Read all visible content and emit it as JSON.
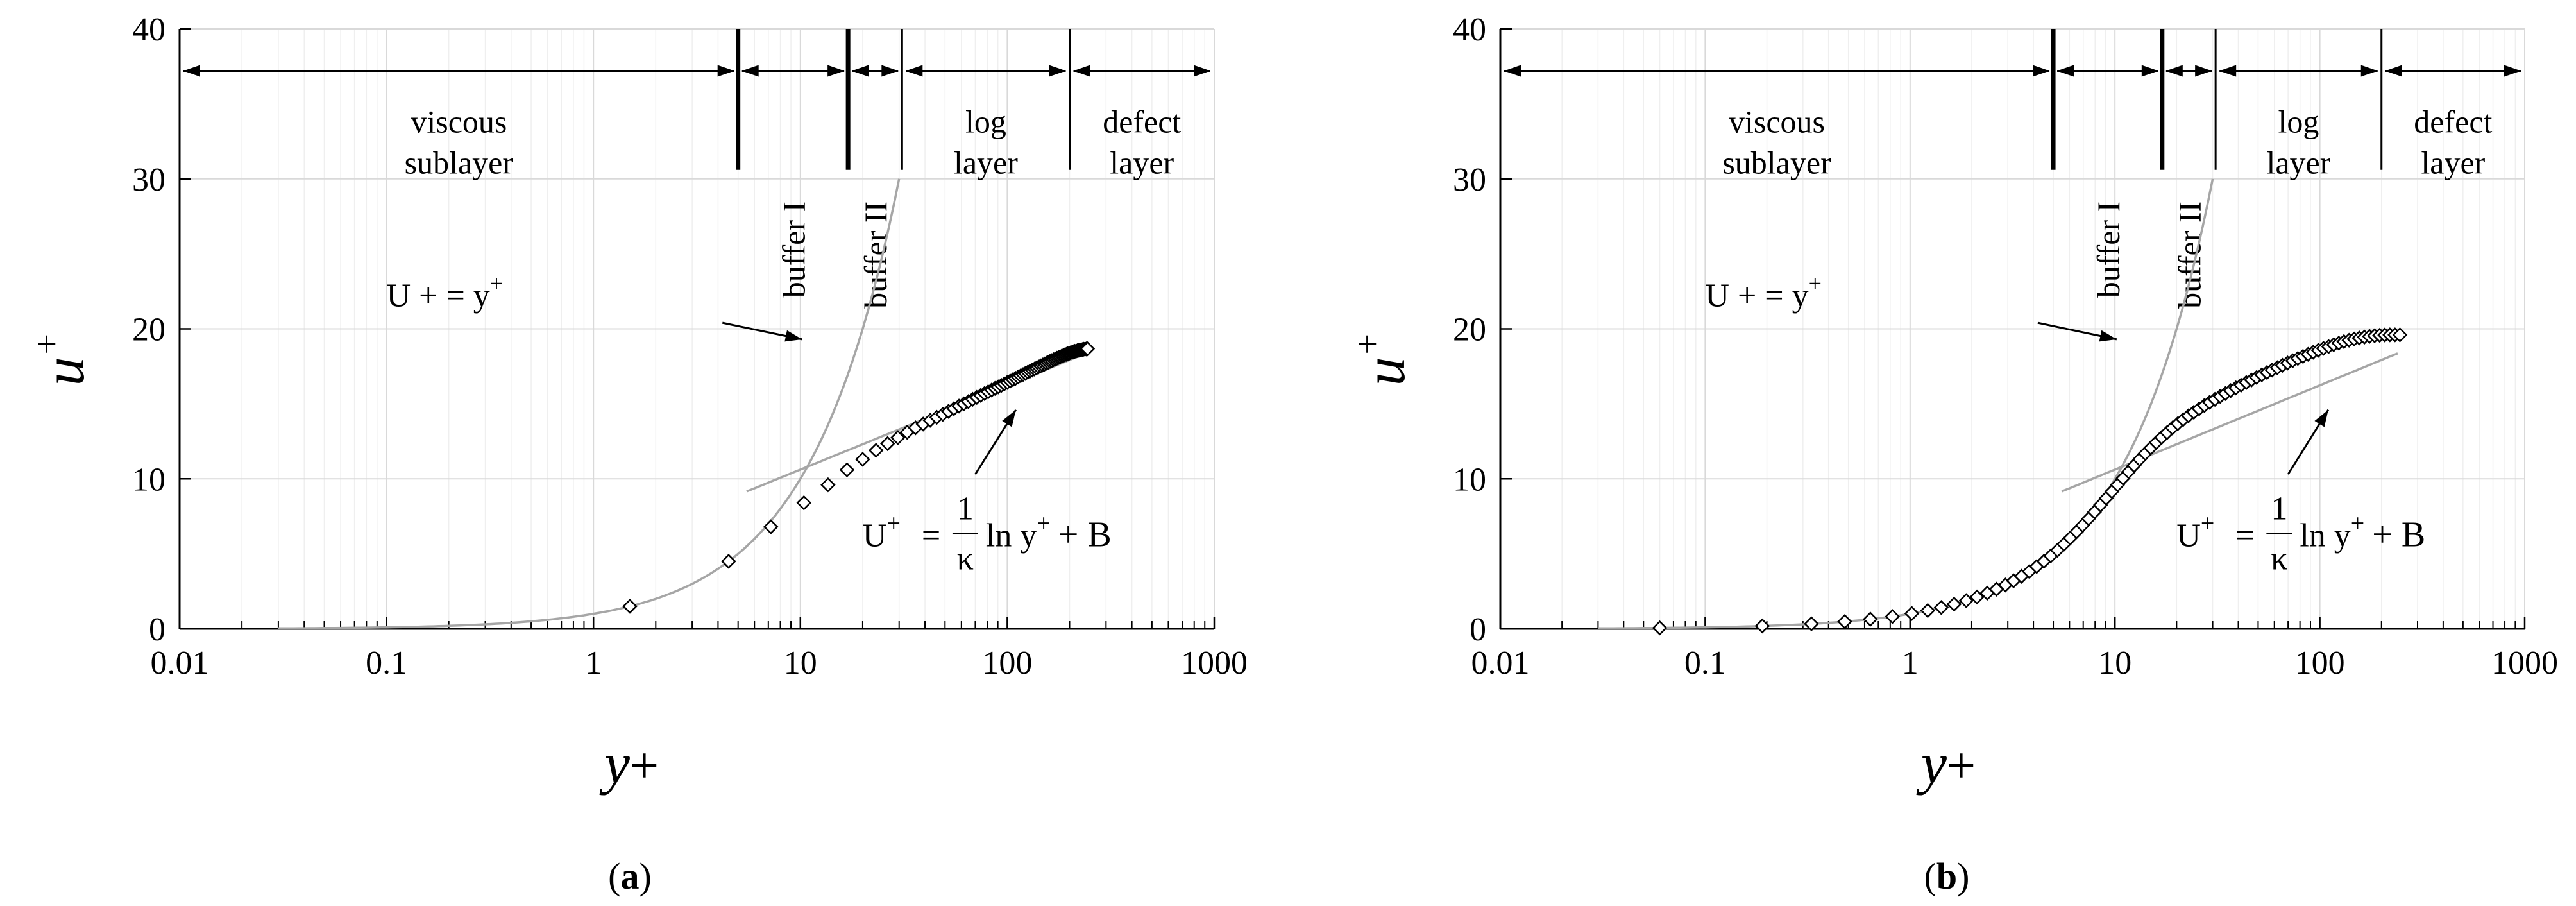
{
  "figure": {
    "panels": [
      "(a)",
      "(b)"
    ]
  },
  "chart_data": [
    {
      "type": "scatter",
      "panel_label": "(a)",
      "xlabel": "y+",
      "ylabel": "u+",
      "x_scale": "log",
      "xlim": [
        0.01,
        1000
      ],
      "ylim": [
        0,
        40
      ],
      "x_ticks": [
        "0.01",
        "0.1",
        "1",
        "10",
        "100",
        "1000"
      ],
      "y_ticks": [
        "0",
        "10",
        "20",
        "30",
        "40"
      ],
      "grid": true,
      "regions": [
        {
          "lines": [
            "viscous",
            "sublayer"
          ],
          "from": 0.01,
          "to": 5,
          "vertical": false
        },
        {
          "lines": [
            "buffer I"
          ],
          "from": 5,
          "to": 17,
          "vertical": true
        },
        {
          "lines": [
            "buffer II"
          ],
          "from": 17,
          "to": 31,
          "vertical": true
        },
        {
          "lines": [
            "log",
            "layer"
          ],
          "from": 31,
          "to": 200,
          "vertical": false
        },
        {
          "lines": [
            "defect",
            "layer"
          ],
          "from": 200,
          "to": 1000,
          "vertical": false
        }
      ],
      "boundaries": [
        {
          "x": 5,
          "style": "thick"
        },
        {
          "x": 17,
          "style": "thick"
        },
        {
          "x": 31,
          "style": "thin"
        },
        {
          "x": 200,
          "style": "thin"
        }
      ],
      "annotations": {
        "viscous_law": "U + = y",
        "viscous_law_sup": "+",
        "log_law_left": "U",
        "log_law_sup": "+",
        "log_law_eq": "=",
        "log_law_num": "1",
        "log_law_den": "κ",
        "log_law_right": "ln y",
        "log_law_right_sup": "+",
        "log_law_tail": "+ B"
      },
      "viscous_law_curve": {
        "x_min": 0.03,
        "x_max": 30
      },
      "log_law_curve": {
        "kappa": 0.41,
        "B": 5.0,
        "x_min": 5.5,
        "x_max": 240
      },
      "series": [
        {
          "marker": "diamond",
          "x": [
            1.5,
            4.5,
            7.2,
            10.4,
            13.6,
            16.8,
            20,
            23.2,
            26.4,
            29.6,
            32.8,
            36,
            39.2,
            42.4,
            45.6,
            48.8,
            52,
            55.2,
            58.4,
            61.6,
            64.8,
            68,
            71.2,
            74.4,
            77.6,
            80.8,
            84,
            87.2,
            90.4,
            93.6,
            96.8,
            100,
            103.2,
            106.4,
            109.6,
            112.8,
            116,
            119.2,
            122.4,
            125.6,
            128.8,
            132,
            135.2,
            138.4,
            141.6,
            144.8,
            148,
            151.2,
            154.4,
            157.6,
            160.8,
            164,
            167.2,
            170.4,
            173.6,
            176.8,
            180,
            183.2,
            186.4,
            189.6,
            192.8,
            196,
            199.2,
            202.4,
            205.6,
            208.8,
            212,
            215.2,
            218.4,
            221.6,
            224.8,
            228,
            231.2,
            234.4,
            237.6,
            240.8,
            244
          ],
          "y": [
            1.5,
            4.5,
            6.8,
            8.4,
            9.6,
            10.6,
            11.3,
            11.9,
            12.35,
            12.75,
            13.1,
            13.4,
            13.65,
            13.9,
            14.1,
            14.3,
            14.5,
            14.68,
            14.85,
            15,
            15.15,
            15.3,
            15.43,
            15.56,
            15.69,
            15.8,
            15.92,
            16.03,
            16.13,
            16.23,
            16.33,
            16.43,
            16.52,
            16.61,
            16.7,
            16.79,
            16.87,
            16.95,
            17.03,
            17.11,
            17.18,
            17.25,
            17.32,
            17.39,
            17.46,
            17.53,
            17.59,
            17.65,
            17.71,
            17.77,
            17.83,
            17.88,
            17.94,
            17.99,
            18.04,
            18.09,
            18.13,
            18.18,
            18.22,
            18.26,
            18.3,
            18.34,
            18.37,
            18.41,
            18.44,
            18.47,
            18.5,
            18.52,
            18.55,
            18.57,
            18.59,
            18.61,
            18.62,
            18.64,
            18.65,
            18.66,
            18.67
          ]
        }
      ]
    },
    {
      "type": "scatter",
      "panel_label": "(b)",
      "xlabel": "y+",
      "ylabel": "u+",
      "x_scale": "log",
      "xlim": [
        0.01,
        1000
      ],
      "ylim": [
        0,
        40
      ],
      "x_ticks": [
        "0.01",
        "0.1",
        "1",
        "10",
        "100",
        "1000"
      ],
      "y_ticks": [
        "0",
        "10",
        "20",
        "30",
        "40"
      ],
      "grid": true,
      "regions": [
        {
          "lines": [
            "viscous",
            "sublayer"
          ],
          "from": 0.01,
          "to": 5,
          "vertical": false
        },
        {
          "lines": [
            "buffer I"
          ],
          "from": 5,
          "to": 17,
          "vertical": true
        },
        {
          "lines": [
            "buffer II"
          ],
          "from": 17,
          "to": 31,
          "vertical": true
        },
        {
          "lines": [
            "log",
            "layer"
          ],
          "from": 31,
          "to": 200,
          "vertical": false
        },
        {
          "lines": [
            "defect",
            "layer"
          ],
          "from": 200,
          "to": 1000,
          "vertical": false
        }
      ],
      "boundaries": [
        {
          "x": 5,
          "style": "thick"
        },
        {
          "x": 17,
          "style": "thick"
        },
        {
          "x": 31,
          "style": "thin"
        },
        {
          "x": 200,
          "style": "thin"
        }
      ],
      "annotations": {
        "viscous_law": "U + = y",
        "viscous_law_sup": "+",
        "log_law_left": "U",
        "log_law_sup": "+",
        "log_law_eq": "=",
        "log_law_num": "1",
        "log_law_den": "κ",
        "log_law_right": "ln y",
        "log_law_right_sup": "+",
        "log_law_tail": "+ B"
      },
      "viscous_law_curve": {
        "x_min": 0.03,
        "x_max": 30
      },
      "log_law_curve": {
        "kappa": 0.41,
        "B": 5.0,
        "x_min": 5.5,
        "x_max": 240
      },
      "series": [
        {
          "marker": "diamond",
          "x": [
            0.06,
            0.19,
            0.33,
            0.48,
            0.64,
            0.82,
            1.02,
            1.22,
            1.42,
            1.64,
            1.88,
            2.12,
            2.38,
            2.64,
            2.92,
            3.2,
            3.5,
            3.82,
            4.15,
            4.5,
            4.86,
            5.24,
            5.64,
            6.05,
            6.5,
            6.95,
            7.44,
            7.95,
            8.5,
            9.06,
            9.66,
            10.3,
            10.96,
            11.66,
            12.4,
            13.2,
            14.05,
            14.95,
            15.9,
            16.9,
            17.96,
            19.08,
            20.27,
            21.53,
            22.86,
            24.27,
            25.76,
            27.33,
            29,
            30.77,
            32.64,
            34.62,
            36.71,
            38.93,
            41.27,
            43.75,
            46.38,
            49.16,
            52.1,
            55.22,
            58.51,
            62,
            65.7,
            69.6,
            73.74,
            78.12,
            82.76,
            87.66,
            92.86,
            98.36,
            104.2,
            110.4,
            116.9,
            123.8,
            131.1,
            138.9,
            147.1,
            155.8,
            165,
            174.8,
            185.1,
            196,
            207.6,
            219.8,
            232.8,
            246
          ],
          "y": [
            0.06,
            0.19,
            0.33,
            0.48,
            0.64,
            0.82,
            1.02,
            1.22,
            1.42,
            1.64,
            1.88,
            2.12,
            2.38,
            2.64,
            2.92,
            3.2,
            3.5,
            3.82,
            4.15,
            4.5,
            4.86,
            5.24,
            5.64,
            6.05,
            6.47,
            6.9,
            7.34,
            7.79,
            8.25,
            8.7,
            9.15,
            9.6,
            10.04,
            10.47,
            10.89,
            11.3,
            11.69,
            12.06,
            12.42,
            12.76,
            13.08,
            13.39,
            13.68,
            13.95,
            14.2,
            14.44,
            14.67,
            14.89,
            15.1,
            15.3,
            15.5,
            15.69,
            15.88,
            16.06,
            16.24,
            16.42,
            16.59,
            16.76,
            16.93,
            17.09,
            17.25,
            17.41,
            17.57,
            17.72,
            17.87,
            18.02,
            18.16,
            18.3,
            18.44,
            18.57,
            18.7,
            18.82,
            18.94,
            19.05,
            19.15,
            19.24,
            19.32,
            19.39,
            19.45,
            19.5,
            19.54,
            19.57,
            19.59,
            19.6,
            19.6,
            19.6
          ]
        }
      ]
    }
  ]
}
